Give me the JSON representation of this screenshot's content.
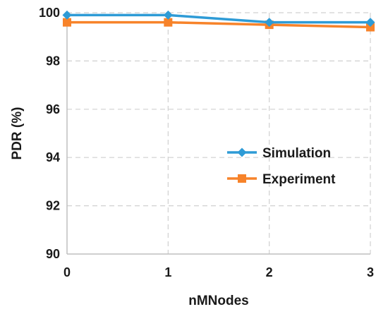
{
  "chart_data": {
    "type": "line",
    "xlabel": "nMNodes",
    "ylabel": "PDR (%)",
    "x": [
      0,
      1,
      2,
      3
    ],
    "x_tick_labels": [
      "0",
      "1",
      "2",
      "3"
    ],
    "ylim": [
      90,
      100
    ],
    "y_ticks": [
      90,
      92,
      94,
      96,
      98,
      100
    ],
    "y_tick_labels": [
      "90",
      "92",
      "94",
      "96",
      "98",
      "100"
    ],
    "grid": true,
    "legend_position": "center-right",
    "series": [
      {
        "name": "Simulation",
        "values": [
          99.9,
          99.9,
          99.6,
          99.6
        ],
        "color": "#2E9BD6",
        "marker": "diamond"
      },
      {
        "name": "Experiment",
        "values": [
          99.6,
          99.6,
          99.5,
          99.4
        ],
        "color": "#F7832A",
        "marker": "square"
      }
    ]
  }
}
